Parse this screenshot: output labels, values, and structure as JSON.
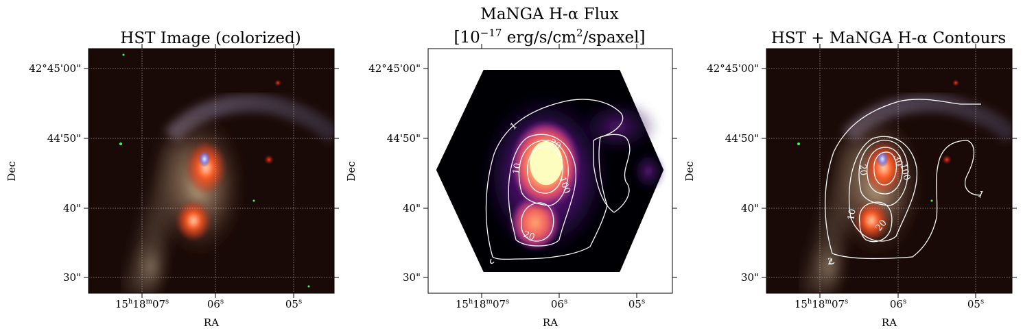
{
  "figure": {
    "panels": [
      {
        "id": "hst",
        "title": [
          "HST Image (colorized)"
        ],
        "xlabel": "RA",
        "ylabel": "Dec",
        "yticks": [
          "42°45'00\"",
          "44'50\"",
          "40\"",
          "30\""
        ],
        "xticks": [
          {
            "base": "15",
            "sup1": "h",
            "mid": "18",
            "sup2": "m",
            "tail": "07",
            "sup3": "s"
          },
          {
            "base": "06",
            "sup1": "s"
          },
          {
            "base": "05",
            "sup1": "s"
          }
        ],
        "contour_labels": []
      },
      {
        "id": "manga",
        "title": [
          "MaNGA H-α Flux",
          "[10^-17 erg/s/cm^2/spaxel]"
        ],
        "title_parts": {
          "line1": "MaNGA H-α Flux",
          "l2_a": "[10",
          "l2_exp": "−17",
          "l2_b": " erg/s/cm",
          "l2_exp2": "2",
          "l2_c": "/spaxel]"
        },
        "xlabel": "RA",
        "ylabel": "Dec",
        "yticks": [
          "42°45'00\"",
          "44'50\"",
          "40\"",
          "30\""
        ],
        "contour_labels": [
          "1",
          "20",
          "10",
          "100",
          "20"
        ]
      },
      {
        "id": "overlay",
        "title": [
          "HST + MaNGA H-α Contours"
        ],
        "xlabel": "RA",
        "ylabel": "Dec",
        "yticks": [
          "42°45'00\"",
          "44'50\"",
          "40\"",
          "30\""
        ],
        "contour_labels": [
          "30",
          "100",
          "20",
          "10",
          "20",
          "1",
          "2"
        ]
      }
    ],
    "colors": {
      "hst_background": "#1a0a07",
      "galaxy_core": "#ff4a1a",
      "galaxy_halo": "#c9b28a",
      "flux_low": "#000004",
      "flux_mid": "#b73779",
      "flux_high": "#fcfdbf",
      "contour": "#ffffff",
      "grid": "#bbbbbb"
    }
  }
}
